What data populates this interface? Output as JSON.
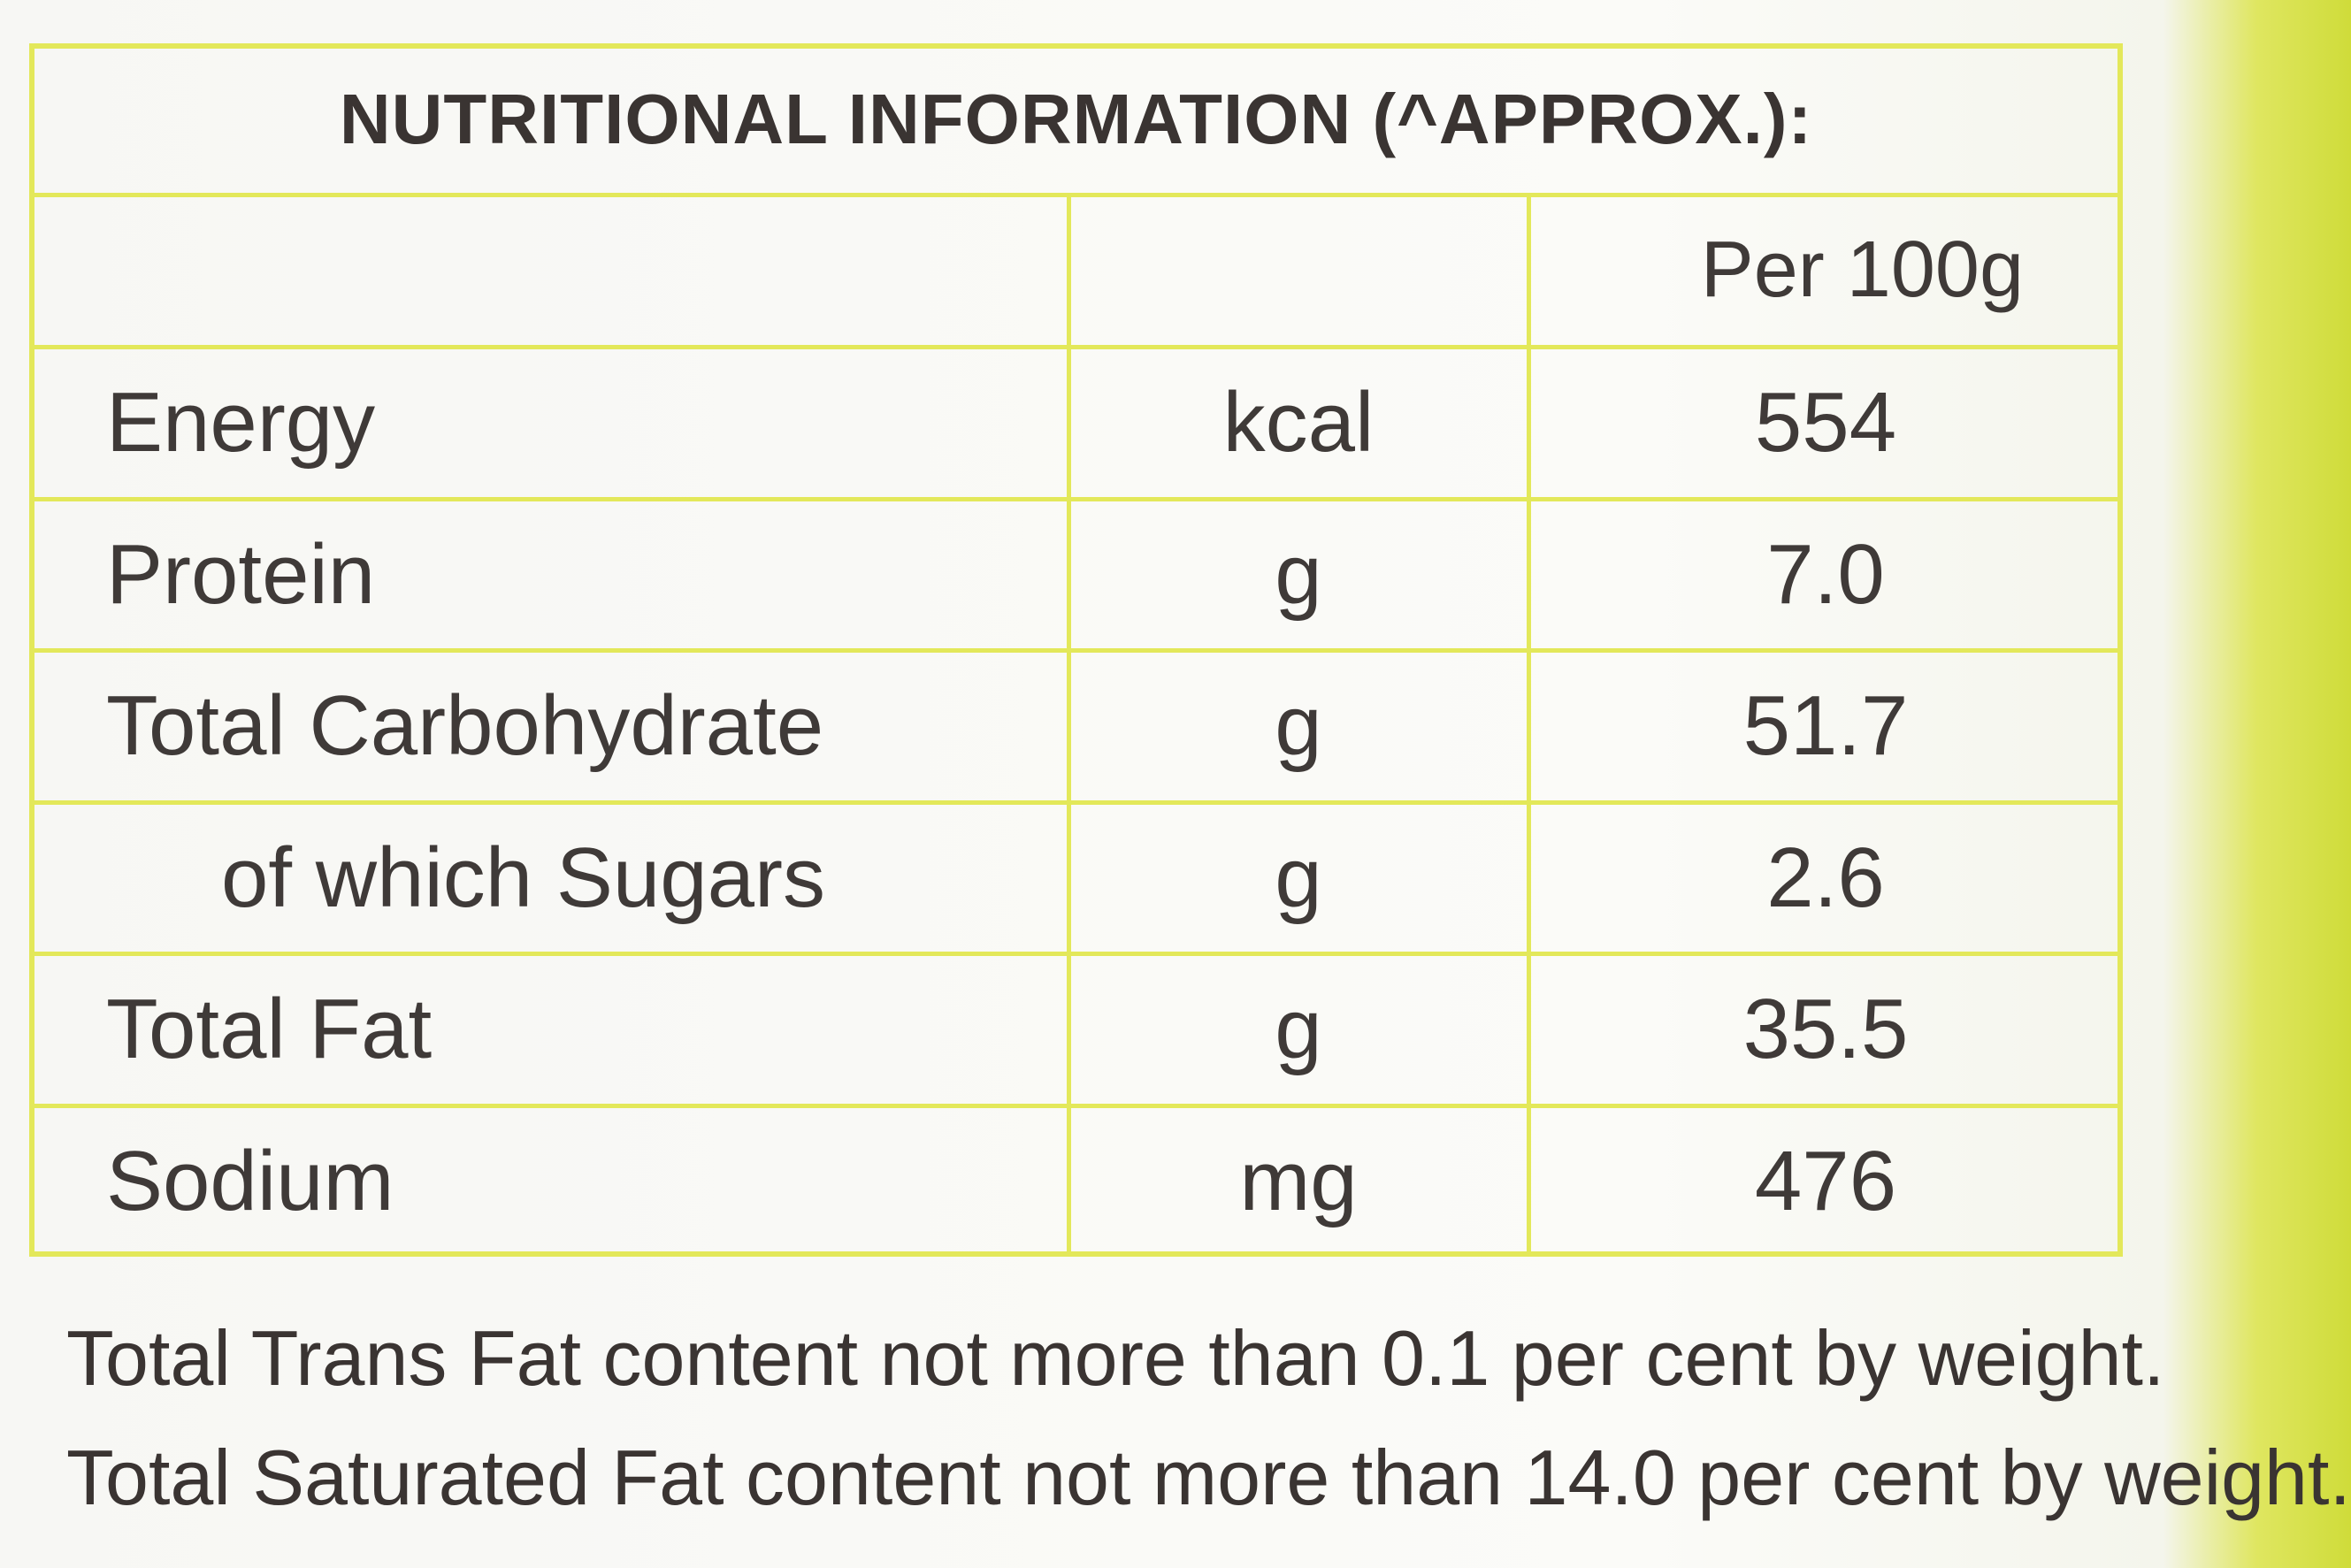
{
  "title": "NUTRITIONAL INFORMATION (^APPROX.):",
  "table": {
    "header": {
      "per": "Per 100g"
    },
    "rows": [
      [
        "Energy",
        "kcal",
        "554"
      ],
      [
        "Protein",
        "g",
        "7.0"
      ],
      [
        "Total Carbohydrate",
        "g",
        "51.7"
      ],
      [
        "of which Sugars",
        "g",
        "2.6"
      ],
      [
        "Total Fat",
        "g",
        "35.5"
      ],
      [
        "Sodium",
        "mg",
        "476"
      ]
    ]
  },
  "footnotes": [
    "Total Trans Fat content not more than 0.1 per cent by weight.",
    "Total Saturated Fat content not more than 14.0 per cent by weight."
  ]
}
